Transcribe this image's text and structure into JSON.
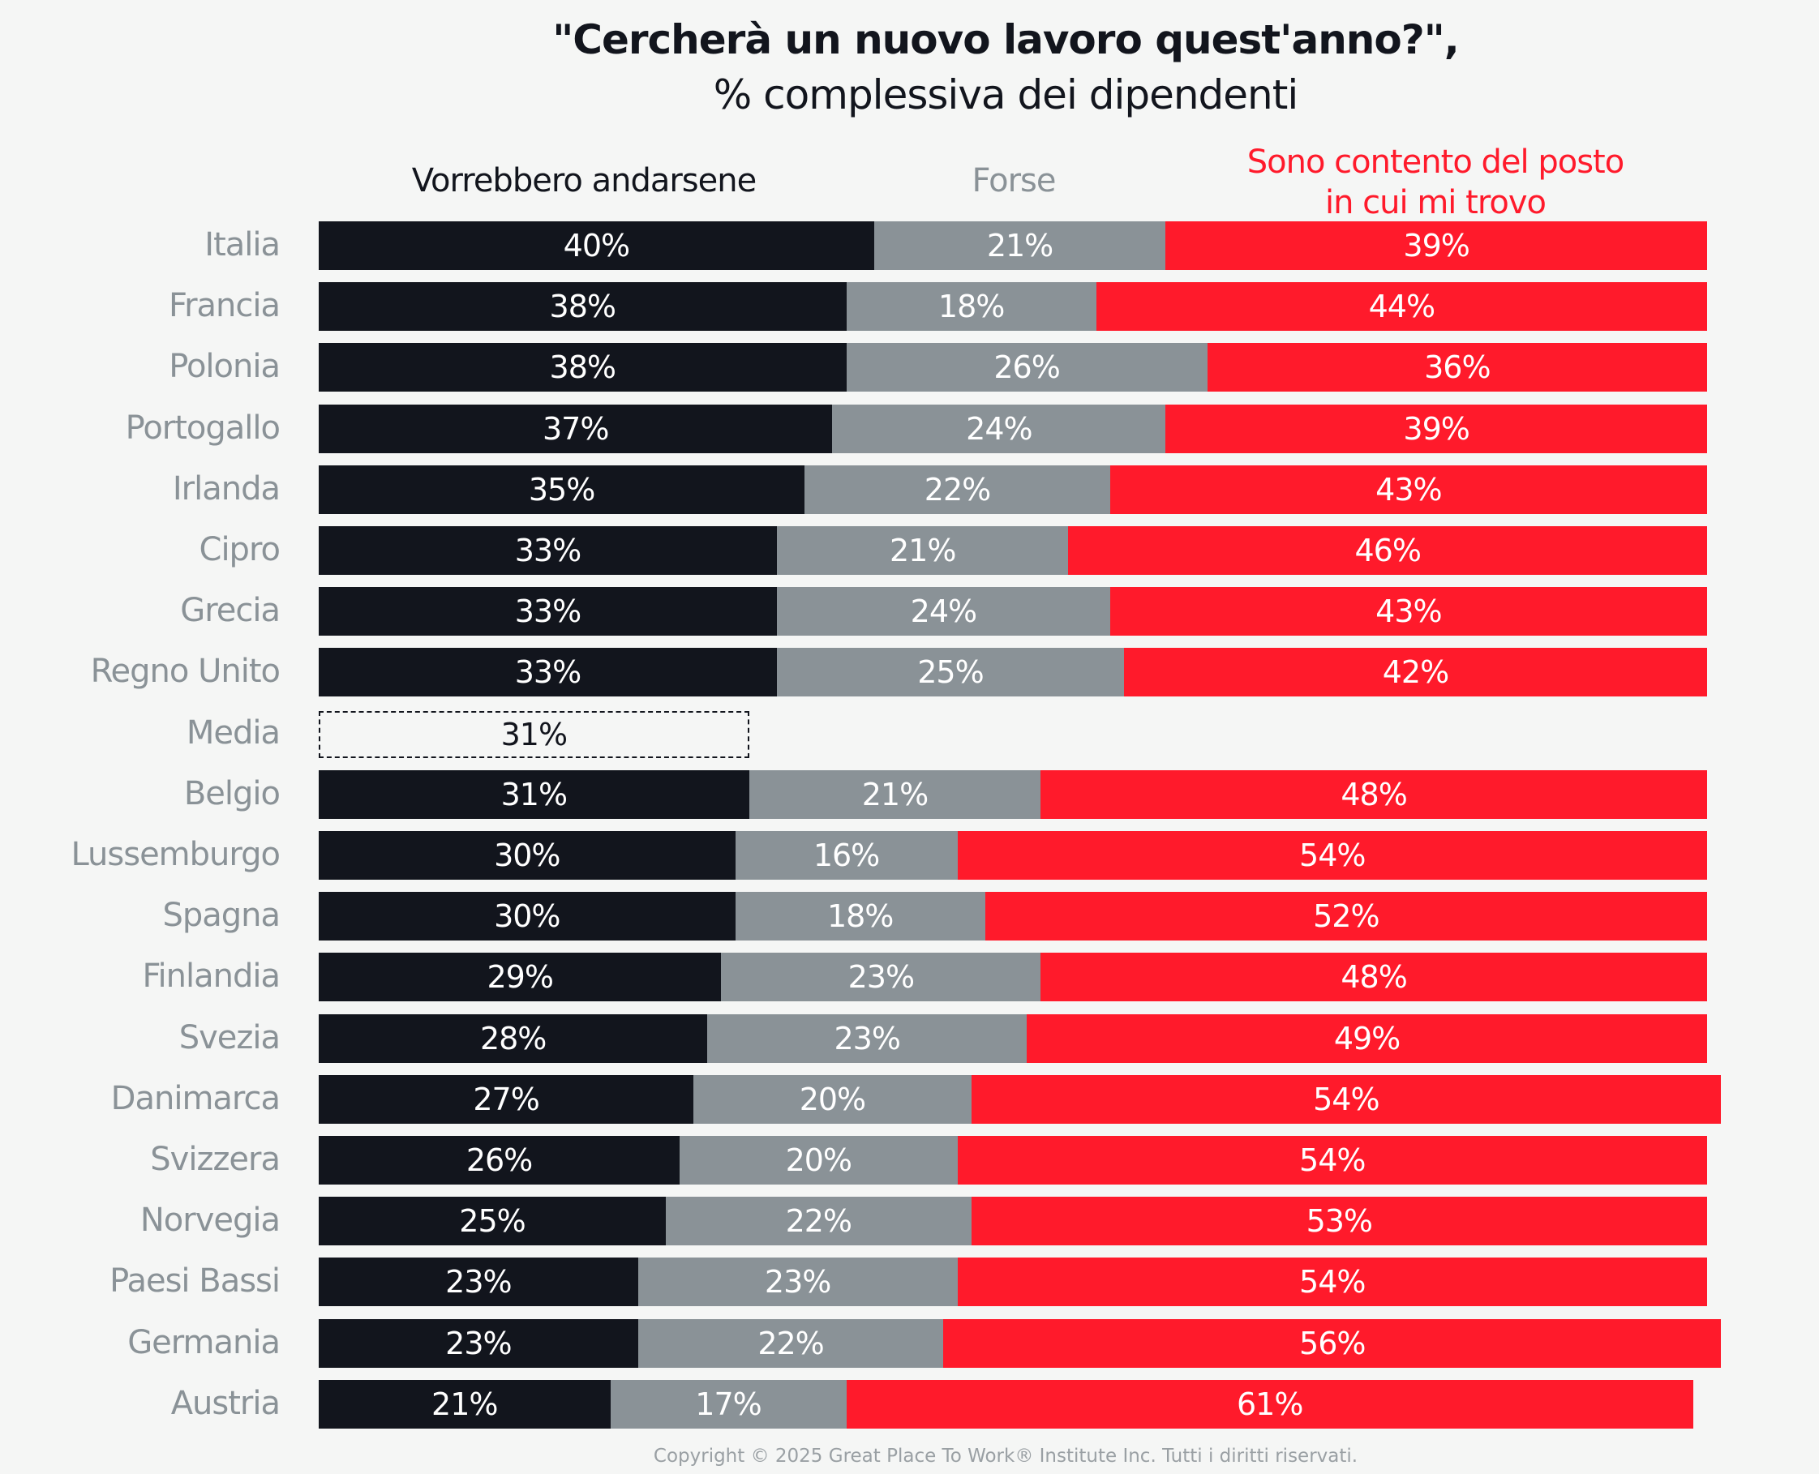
{
  "chart_data": {
    "type": "bar",
    "orientation": "horizontal",
    "stacked": true,
    "title": "\"Cercherà un nuovo lavoro quest'anno?\",",
    "subtitle": "% complessiva dei dipendenti",
    "xlim": [
      0,
      100
    ],
    "legend": [
      {
        "name": "Vorrebbero andarsene",
        "color": "#12151d"
      },
      {
        "name": "Forse",
        "color": "#8a9297"
      },
      {
        "name": "Sono contento del posto in cui mi trovo",
        "color": "#ff1a2b"
      }
    ],
    "categories": [
      "Italia",
      "Francia",
      "Polonia",
      "Portogallo",
      "Irlanda",
      "Cipro",
      "Grecia",
      "Regno Unito",
      "Media",
      "Belgio",
      "Lussemburgo",
      "Spagna",
      "Finlandia",
      "Svezia",
      "Danimarca",
      "Svizzera",
      "Norvegia",
      "Paesi Bassi",
      "Germania",
      "Austria"
    ],
    "series": [
      {
        "name": "Vorrebbero andarsene",
        "values": [
          40,
          38,
          38,
          37,
          35,
          33,
          33,
          33,
          31,
          31,
          30,
          30,
          29,
          28,
          27,
          26,
          25,
          23,
          23,
          21
        ]
      },
      {
        "name": "Forse",
        "values": [
          21,
          18,
          26,
          24,
          22,
          21,
          24,
          25,
          null,
          21,
          16,
          18,
          23,
          23,
          20,
          20,
          22,
          23,
          22,
          17
        ]
      },
      {
        "name": "Sono contento del posto in cui mi trovo",
        "values": [
          39,
          44,
          36,
          39,
          43,
          46,
          43,
          42,
          null,
          48,
          54,
          52,
          48,
          49,
          54,
          54,
          53,
          54,
          56,
          61
        ]
      }
    ],
    "annotations": [
      "Media = 31% (dashed outline)"
    ]
  },
  "legend_labels": {
    "leave": "Vorrebbero andarsene",
    "maybe": "Forse",
    "stay_line1": "Sono contento del posto",
    "stay_line2": "in cui mi trovo"
  },
  "footer": "Copyright © 2025 Great Place To Work® Institute Inc. Tutti i diritti riservati."
}
